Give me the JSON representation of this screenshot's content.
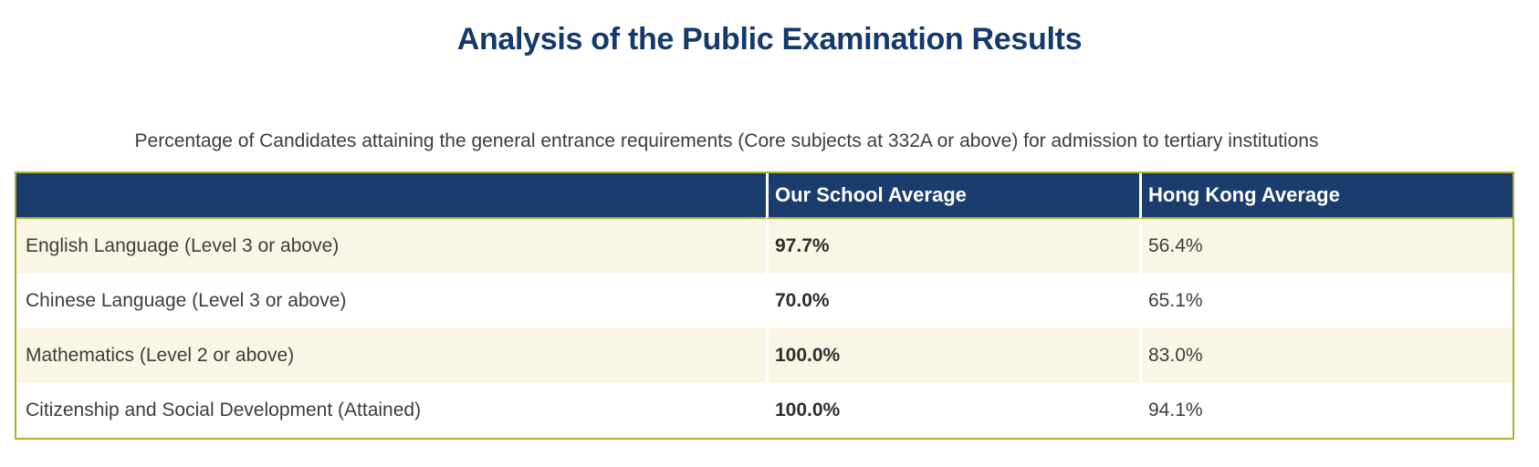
{
  "page": {
    "title": "Analysis of the Public Examination Results",
    "subtitle": "Percentage of Candidates attaining the general entrance requirements (Core subjects at 332A or above) for admission to tertiary institutions"
  },
  "colors": {
    "navy_header": "#1b3d6e",
    "title_navy": "#16396d",
    "gold_border": "#b3ad35",
    "cream_row": "#faf6e5",
    "white_row": "#ffffff",
    "body_text": "#3d3d3d"
  },
  "table": {
    "columns": [
      "",
      "Our School Average",
      "Hong Kong Average"
    ],
    "rows": [
      {
        "label": "English Language (Level 3 or above)",
        "school": "97.7%",
        "hk": "56.4%"
      },
      {
        "label": "Chinese Language (Level 3 or above)",
        "school": "70.0%",
        "hk": "65.1%"
      },
      {
        "label": "Mathematics (Level 2 or above)",
        "school": "100.0%",
        "hk": "83.0%"
      },
      {
        "label": "Citizenship and Social Development (Attained)",
        "school": "100.0%",
        "hk": "94.1%"
      }
    ]
  },
  "chart_data": {
    "type": "table",
    "title": "Analysis of the Public Examination Results",
    "subtitle": "Percentage of Candidates attaining the general entrance requirements (Core subjects at 332A or above) for admission to tertiary institutions",
    "categories": [
      "English Language (Level 3 or above)",
      "Chinese Language (Level 3 or above)",
      "Mathematics (Level 2 or above)",
      "Citizenship and Social Development (Attained)"
    ],
    "series": [
      {
        "name": "Our School Average",
        "values": [
          97.7,
          70.0,
          100.0,
          100.0
        ]
      },
      {
        "name": "Hong Kong Average",
        "values": [
          56.4,
          65.1,
          83.0,
          94.1
        ]
      }
    ],
    "unit": "%"
  }
}
